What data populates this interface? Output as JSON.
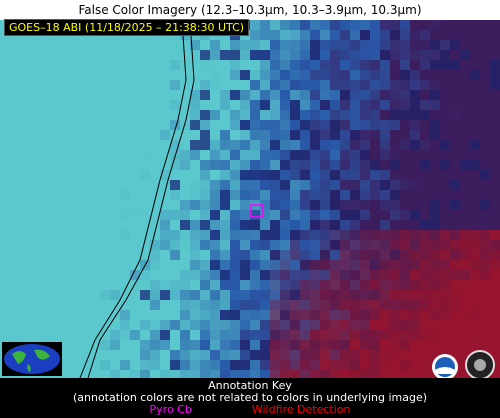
{
  "header": {
    "title": "False Color Imagery (12.3–10.3µm, 10.3–3.9µm, 10.3µm)"
  },
  "image": {
    "timestamp_label": "GOES–18 ABI (11/18/2025 – 21:38:30 UTC)"
  },
  "annotation_key": {
    "title": "Annotation Key",
    "note": "(annotation colors are not related to colors in underlying image)",
    "items": [
      {
        "label": "Pyro Cb",
        "color": "#ff00ff"
      },
      {
        "label": "Wildfire Detection",
        "color": "#ff0000"
      }
    ]
  }
}
